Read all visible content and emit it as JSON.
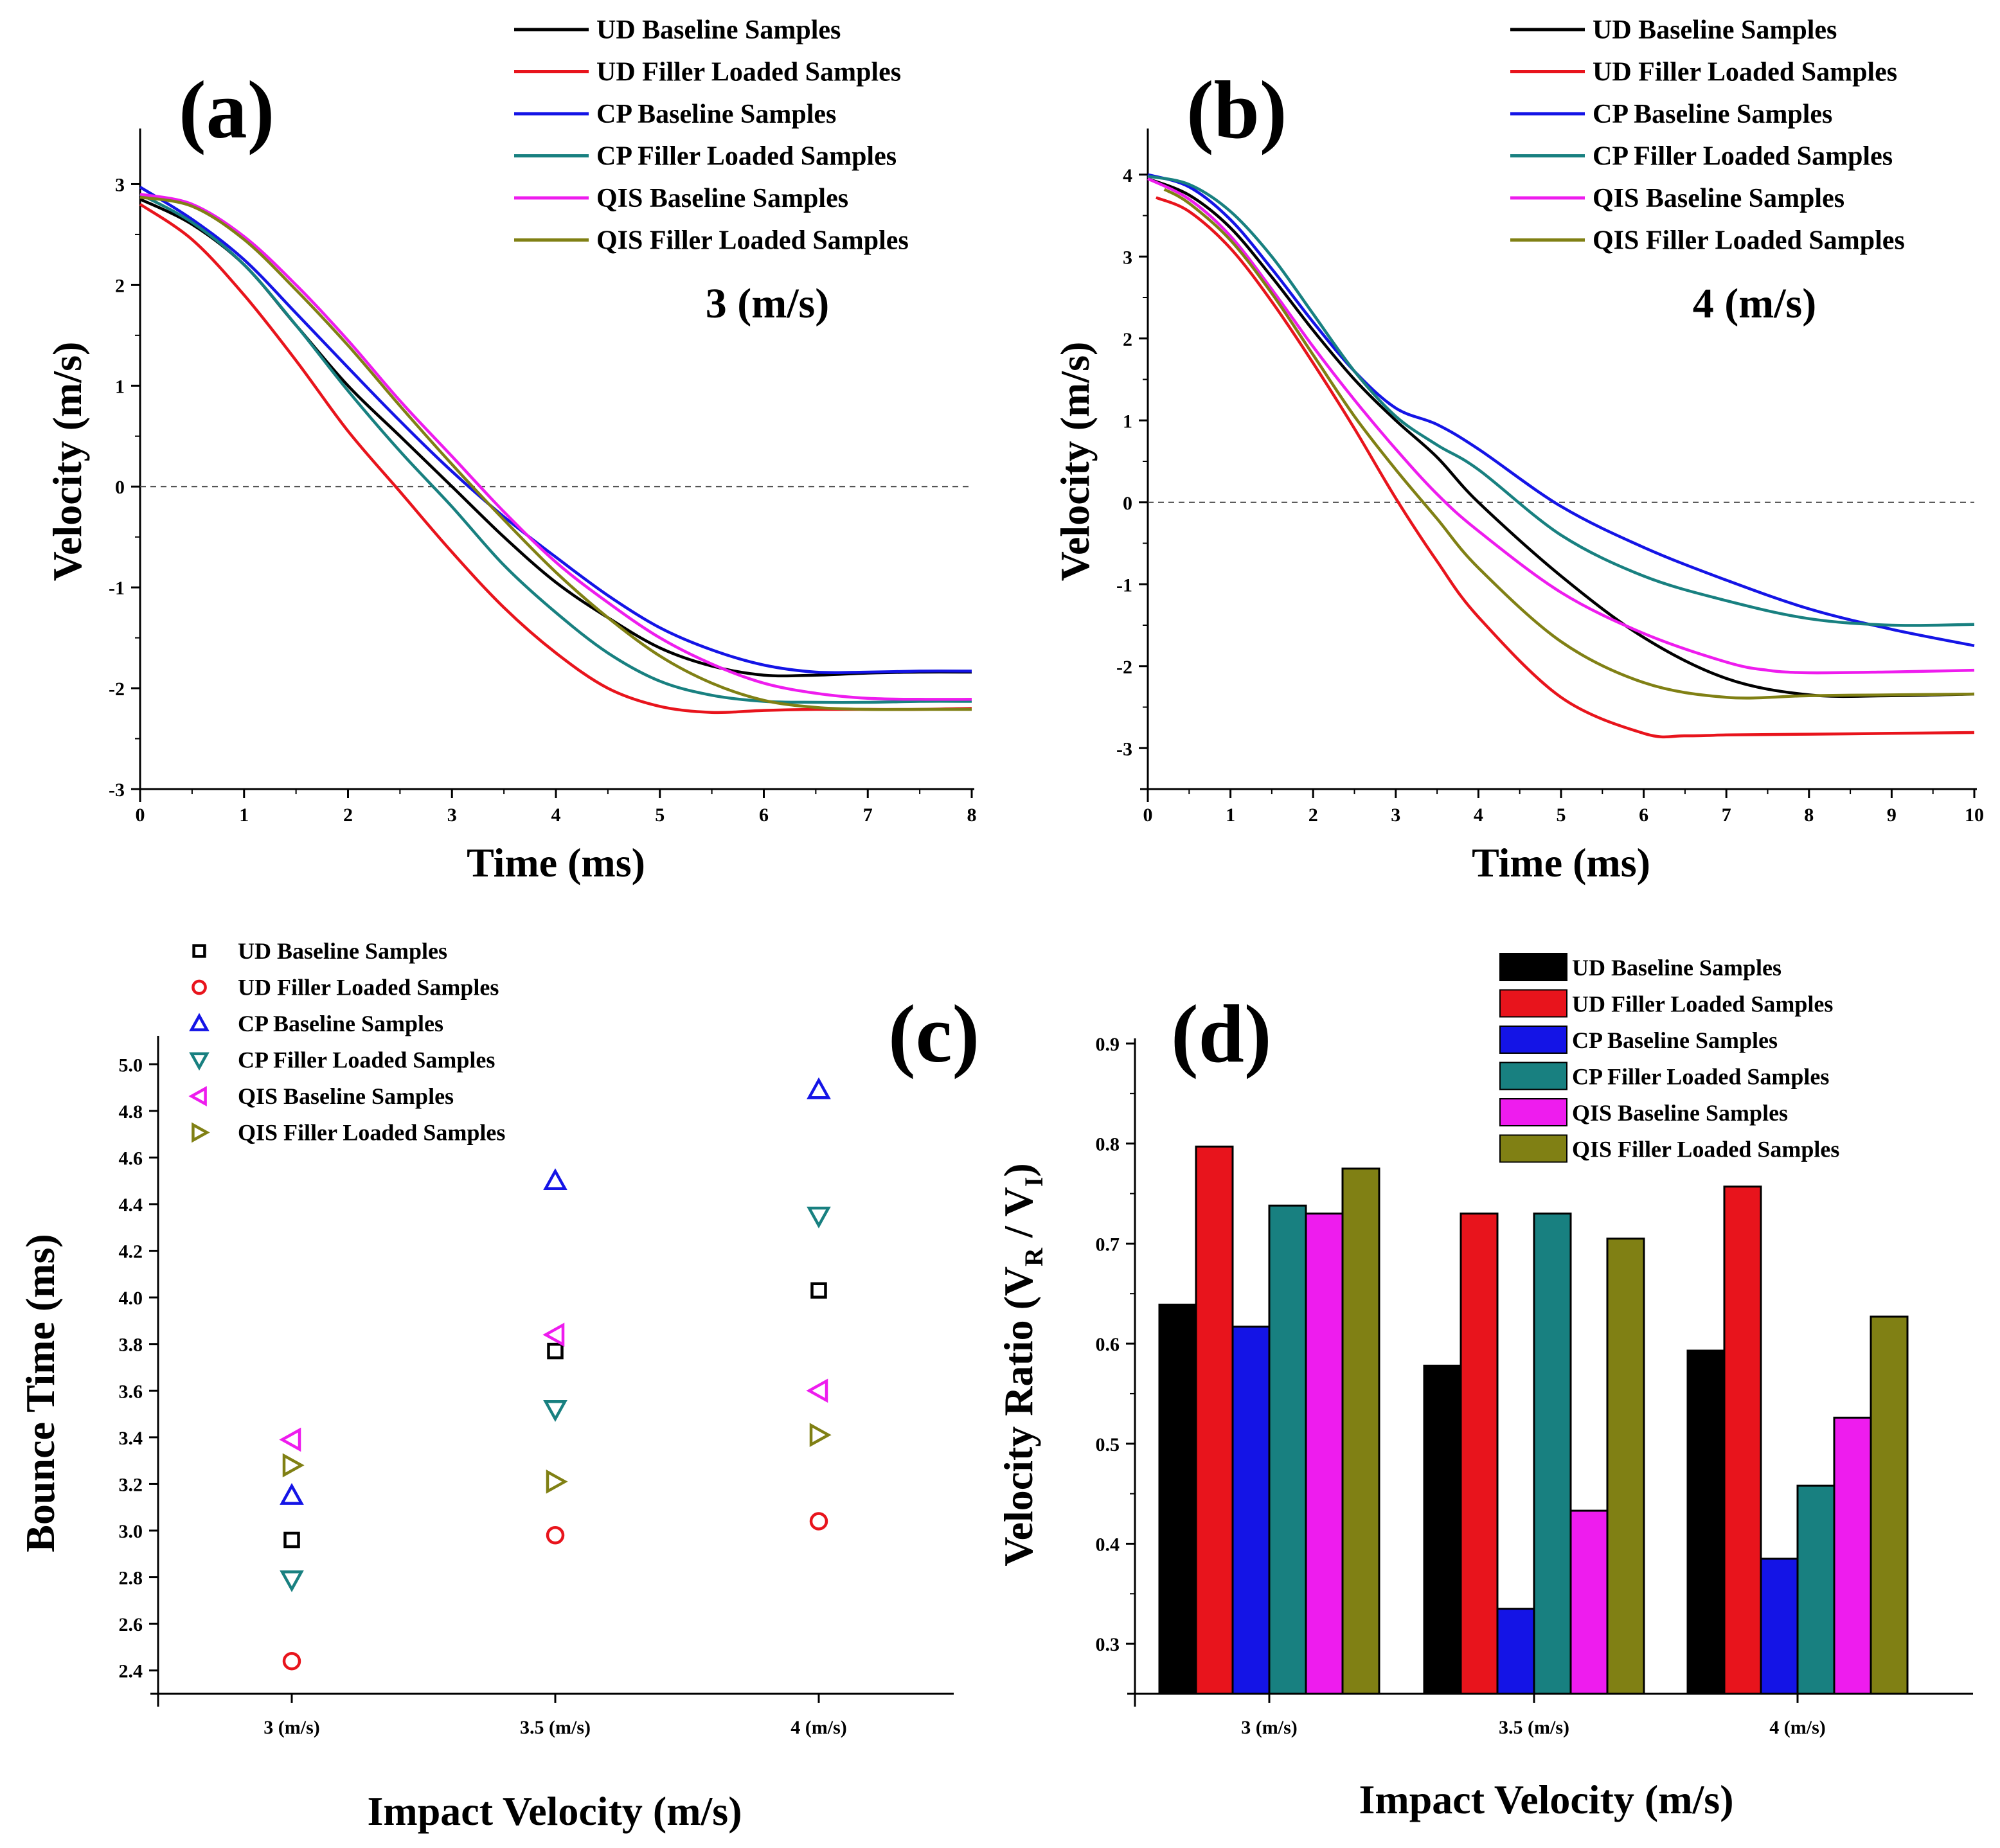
{
  "series_names": [
    "UD Baseline Samples",
    "UD Filler Loaded Samples",
    "CP Baseline Samples",
    "CP Filler Loaded Samples",
    "QIS Baseline Samples",
    "QIS Filler Loaded Samples"
  ],
  "series_colors": [
    "#000000",
    "#e8141c",
    "#1414e6",
    "#188080",
    "#ee1cee",
    "#808014"
  ],
  "chart_data": [
    {
      "panel": "(a)",
      "type": "line",
      "annotation": "3 (m/s)",
      "xlabel": "Time (ms)",
      "ylabel": "Velocity (m/s)",
      "xlim": [
        0,
        8
      ],
      "ylim": [
        -3,
        3.5
      ],
      "xticks": [
        "0",
        "1",
        "2",
        "3",
        "4",
        "5",
        "6",
        "7",
        "8"
      ],
      "yticks": [
        "-3",
        "-2",
        "-1",
        "0",
        "1",
        "2",
        "3"
      ],
      "zero_line": "dashed",
      "legend_position": "top-right",
      "series": [
        {
          "name": "UD Baseline Samples",
          "x": [
            0,
            0.5,
            1,
            1.5,
            2,
            2.5,
            3,
            3.5,
            4,
            4.5,
            5,
            5.5,
            6,
            6.5,
            7,
            7.5,
            8
          ],
          "y": [
            2.85,
            2.6,
            2.2,
            1.6,
            1.0,
            0.5,
            0,
            -0.5,
            -0.95,
            -1.3,
            -1.6,
            -1.78,
            -1.87,
            -1.87,
            -1.85,
            -1.84,
            -1.84
          ]
        },
        {
          "name": "UD Filler Loaded Samples",
          "x": [
            0,
            0.5,
            1,
            1.5,
            2,
            2.5,
            3,
            3.5,
            4,
            4.5,
            5,
            5.5,
            6,
            6.5,
            7,
            7.5,
            8
          ],
          "y": [
            2.8,
            2.45,
            1.9,
            1.25,
            0.55,
            -0.05,
            -0.65,
            -1.2,
            -1.65,
            -2.0,
            -2.18,
            -2.24,
            -2.22,
            -2.21,
            -2.21,
            -2.21,
            -2.2
          ]
        },
        {
          "name": "CP Baseline Samples",
          "x": [
            0,
            0.5,
            1,
            1.5,
            2,
            2.5,
            3,
            3.5,
            4,
            4.5,
            5,
            5.5,
            6,
            6.5,
            7,
            7.5,
            8
          ],
          "y": [
            2.97,
            2.65,
            2.25,
            1.72,
            1.18,
            0.65,
            0.15,
            -0.3,
            -0.7,
            -1.08,
            -1.4,
            -1.62,
            -1.77,
            -1.84,
            -1.84,
            -1.83,
            -1.83
          ]
        },
        {
          "name": "CP Filler Loaded Samples",
          "x": [
            0,
            0.5,
            1,
            1.5,
            2,
            2.5,
            3,
            3.5,
            4,
            4.5,
            5,
            5.5,
            6,
            6.5,
            7,
            7.5,
            8
          ],
          "y": [
            2.9,
            2.62,
            2.2,
            1.6,
            0.95,
            0.35,
            -0.2,
            -0.78,
            -1.25,
            -1.65,
            -1.93,
            -2.07,
            -2.13,
            -2.14,
            -2.14,
            -2.13,
            -2.13
          ]
        },
        {
          "name": "QIS Baseline Samples",
          "x": [
            0,
            0.5,
            1,
            1.5,
            2,
            2.5,
            3,
            3.5,
            4,
            4.5,
            5,
            5.5,
            6,
            6.5,
            7,
            7.5,
            8
          ],
          "y": [
            2.9,
            2.8,
            2.48,
            2.0,
            1.45,
            0.85,
            0.3,
            -0.25,
            -0.75,
            -1.15,
            -1.5,
            -1.76,
            -1.95,
            -2.05,
            -2.1,
            -2.11,
            -2.11
          ]
        },
        {
          "name": "QIS Filler Loaded Samples",
          "x": [
            0,
            0.5,
            1,
            1.5,
            2,
            2.5,
            3,
            3.5,
            4,
            4.5,
            5,
            5.5,
            6,
            6.5,
            7,
            7.5,
            8
          ],
          "y": [
            2.87,
            2.78,
            2.45,
            1.95,
            1.4,
            0.8,
            0.22,
            -0.33,
            -0.85,
            -1.3,
            -1.68,
            -1.95,
            -2.12,
            -2.19,
            -2.21,
            -2.21,
            -2.21
          ]
        }
      ]
    },
    {
      "panel": "(b)",
      "type": "line",
      "annotation": "4 (m/s)",
      "xlabel": "Time (ms)",
      "ylabel": "Velocity (m/s)",
      "xlim": [
        0,
        10
      ],
      "ylim": [
        -3.5,
        4.5
      ],
      "xticks": [
        "0",
        "1",
        "2",
        "3",
        "4",
        "5",
        "6",
        "7",
        "8",
        "9",
        "10"
      ],
      "yticks": [
        "-3",
        "-2",
        "-1",
        "0",
        "1",
        "2",
        "3",
        "4"
      ],
      "zero_line": "dashed",
      "legend_position": "top-right",
      "series": [
        {
          "name": "UD Baseline Samples",
          "x": [
            0,
            0.5,
            1,
            1.5,
            2,
            2.5,
            3,
            3.5,
            4,
            5,
            6,
            7,
            8,
            9,
            10
          ],
          "y": [
            3.95,
            3.75,
            3.35,
            2.75,
            2.1,
            1.5,
            1.0,
            0.55,
            0,
            -0.9,
            -1.65,
            -2.15,
            -2.35,
            -2.36,
            -2.34
          ]
        },
        {
          "name": "UD Filler Loaded Samples",
          "x": [
            0.1,
            0.5,
            1,
            1.5,
            2,
            2.5,
            3,
            3.5,
            4,
            5,
            6,
            6.5,
            7,
            8,
            9,
            10
          ],
          "y": [
            3.72,
            3.55,
            3.1,
            2.45,
            1.7,
            0.9,
            0.05,
            -0.72,
            -1.4,
            -2.38,
            -2.82,
            -2.85,
            -2.84,
            -2.83,
            -2.82,
            -2.81
          ]
        },
        {
          "name": "CP Baseline Samples",
          "x": [
            0,
            0.5,
            1,
            1.5,
            2,
            2.5,
            3,
            3.5,
            4,
            5,
            6,
            7,
            8,
            9,
            10
          ],
          "y": [
            4.0,
            3.85,
            3.45,
            2.85,
            2.2,
            1.6,
            1.15,
            0.95,
            0.65,
            -0.05,
            -0.55,
            -0.95,
            -1.3,
            -1.55,
            -1.75
          ]
        },
        {
          "name": "CP Filler Loaded Samples",
          "x": [
            0,
            0.5,
            1,
            1.5,
            2,
            2.5,
            3,
            3.5,
            4,
            5,
            6,
            7,
            8,
            9,
            10
          ],
          "y": [
            3.98,
            3.88,
            3.55,
            3.0,
            2.3,
            1.6,
            1.05,
            0.7,
            0.4,
            -0.4,
            -0.9,
            -1.2,
            -1.42,
            -1.5,
            -1.49
          ]
        },
        {
          "name": "QIS Baseline Samples",
          "x": [
            0,
            0.5,
            1,
            1.5,
            2,
            2.5,
            3,
            3.5,
            4,
            5,
            6,
            7,
            7.5,
            8,
            9,
            10
          ],
          "y": [
            3.95,
            3.7,
            3.25,
            2.6,
            1.9,
            1.25,
            0.65,
            0.1,
            -0.35,
            -1.1,
            -1.6,
            -1.95,
            -2.05,
            -2.08,
            -2.07,
            -2.05
          ]
        },
        {
          "name": "QIS Filler Loaded Samples",
          "x": [
            0.2,
            0.5,
            1,
            1.5,
            2,
            2.5,
            3,
            3.5,
            4,
            5,
            6,
            7,
            8,
            9,
            10
          ],
          "y": [
            3.82,
            3.65,
            3.2,
            2.55,
            1.8,
            1.05,
            0.4,
            -0.2,
            -0.8,
            -1.7,
            -2.2,
            -2.38,
            -2.36,
            -2.35,
            -2.34
          ]
        }
      ]
    },
    {
      "panel": "(c)",
      "type": "scatter",
      "xlabel": "Impact Velocity (m/s)",
      "ylabel": "Bounce Time (ms)",
      "categories": [
        "3 (m/s)",
        "3.5 (m/s)",
        "4 (m/s)"
      ],
      "ylim": [
        2.3,
        5.1
      ],
      "yticks": [
        "2.4",
        "2.6",
        "2.8",
        "3.0",
        "3.2",
        "3.4",
        "3.6",
        "3.8",
        "4.0",
        "4.2",
        "4.4",
        "4.6",
        "4.8",
        "5.0"
      ],
      "legend_position": "top-left",
      "series": [
        {
          "name": "UD Baseline Samples",
          "marker": "square",
          "values": [
            2.96,
            3.77,
            4.03
          ]
        },
        {
          "name": "UD Filler Loaded Samples",
          "marker": "circle",
          "values": [
            2.44,
            2.98,
            3.04
          ]
        },
        {
          "name": "CP Baseline Samples",
          "marker": "triangle-up",
          "values": [
            3.15,
            4.5,
            4.89
          ]
        },
        {
          "name": "CP Filler Loaded Samples",
          "marker": "triangle-down",
          "values": [
            2.79,
            3.52,
            4.35
          ]
        },
        {
          "name": "QIS Baseline Samples",
          "marker": "triangle-left",
          "values": [
            3.39,
            3.84,
            3.6
          ]
        },
        {
          "name": "QIS Filler Loaded Samples",
          "marker": "triangle-right",
          "values": [
            3.28,
            3.21,
            3.41
          ]
        }
      ]
    },
    {
      "panel": "(d)",
      "type": "bar",
      "xlabel": "Impact Velocity  (m/s)",
      "ylabel_main": "Velocity Ratio (V",
      "ylabel_sub1": "R",
      "ylabel_mid": " / V",
      "ylabel_sub2": "I",
      "ylabel_end": ")",
      "categories": [
        "3 (m/s)",
        "3.5 (m/s)",
        "4 (m/s)"
      ],
      "ylim": [
        0.25,
        0.9
      ],
      "yticks": [
        "0.3",
        "0.4",
        "0.5",
        "0.6",
        "0.7",
        "0.8",
        "0.9"
      ],
      "legend_position": "top-right",
      "series": [
        {
          "name": "UD Baseline Samples",
          "values": [
            0.639,
            0.578,
            0.593
          ]
        },
        {
          "name": "UD Filler Loaded Samples",
          "values": [
            0.797,
            0.73,
            0.757
          ]
        },
        {
          "name": "CP Baseline Samples",
          "values": [
            0.617,
            0.335,
            0.385
          ]
        },
        {
          "name": "CP Filler Loaded Samples",
          "values": [
            0.738,
            0.73,
            0.458
          ]
        },
        {
          "name": "QIS Baseline Samples",
          "values": [
            0.73,
            0.433,
            0.526
          ]
        },
        {
          "name": "QIS Filler Loaded Samples",
          "values": [
            0.775,
            0.705,
            0.627
          ]
        }
      ]
    }
  ]
}
